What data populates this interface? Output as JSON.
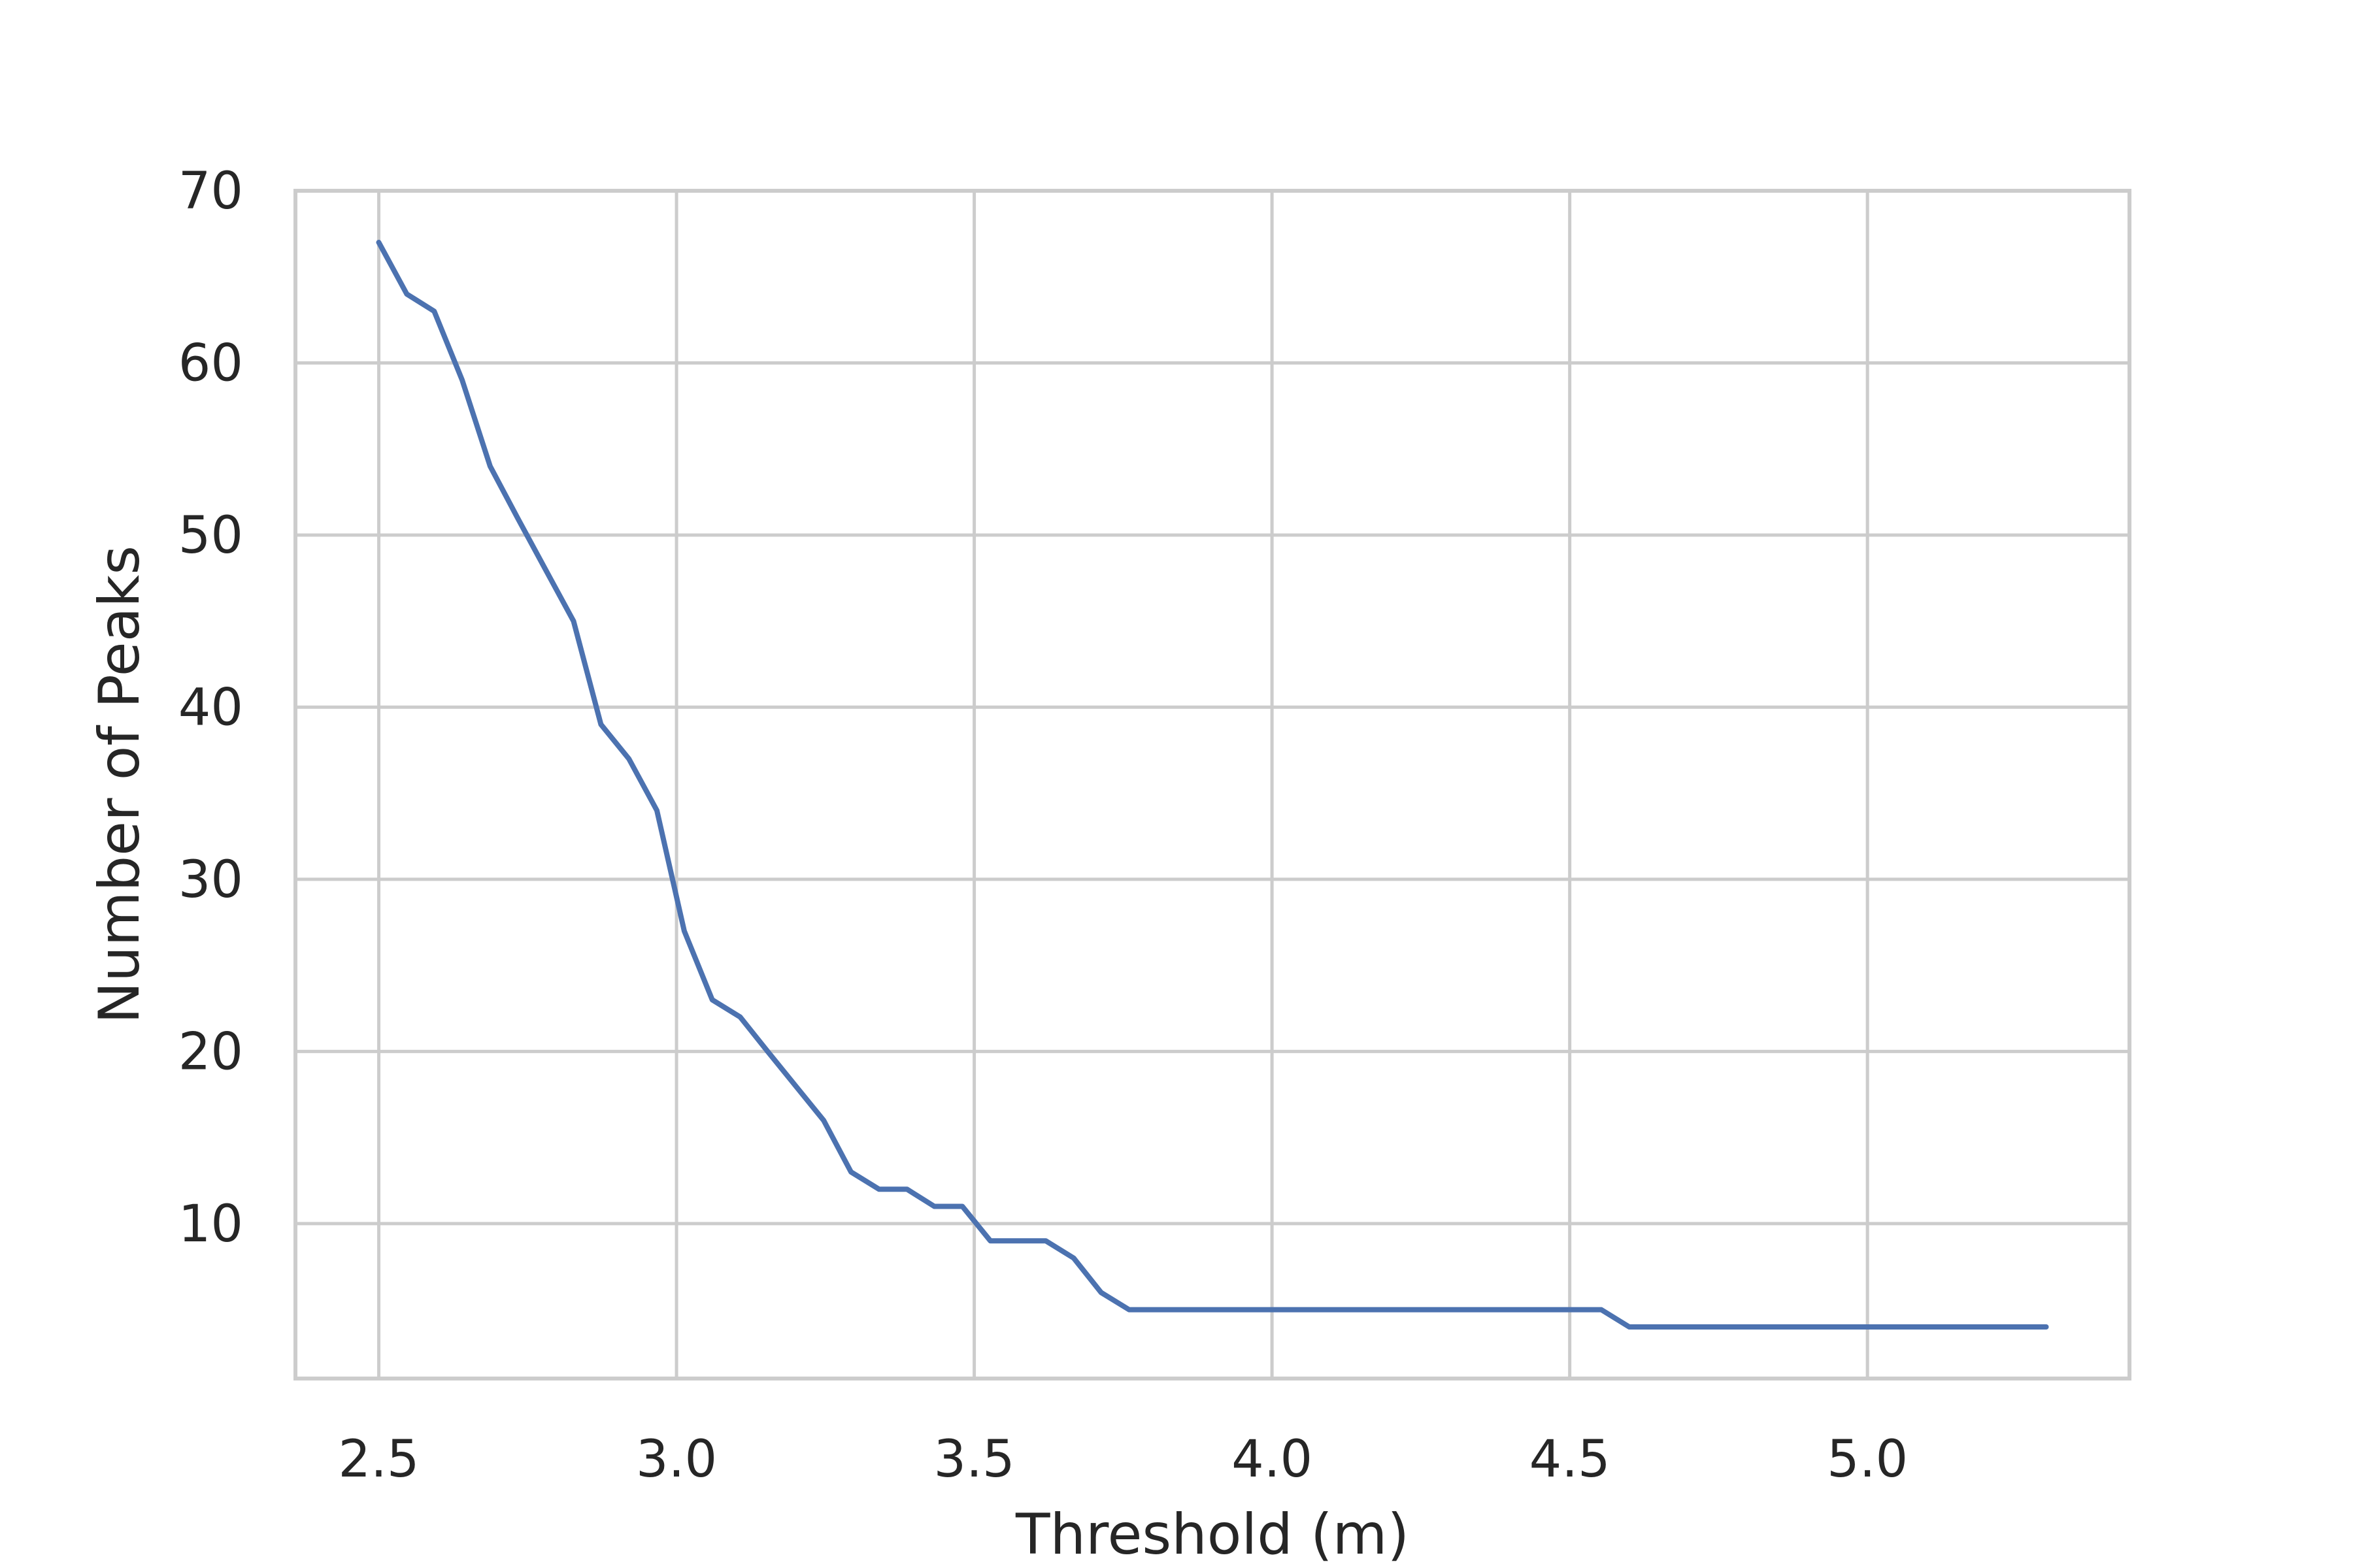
{
  "chart_data": {
    "type": "line",
    "title": "",
    "xlabel": "Threshold (m)",
    "ylabel": "Number of Peaks",
    "xlim": [
      2.36,
      5.44
    ],
    "ylim": [
      1,
      70
    ],
    "x_ticks": [
      2.5,
      3.0,
      3.5,
      4.0,
      4.5,
      5.0
    ],
    "x_tick_labels": [
      "2.5",
      "3.0",
      "3.5",
      "4.0",
      "4.5",
      "5.0"
    ],
    "y_ticks": [
      10,
      20,
      30,
      40,
      50,
      60,
      70
    ],
    "y_tick_labels": [
      "10",
      "20",
      "30",
      "40",
      "50",
      "60",
      "70"
    ],
    "grid": true,
    "legend": "none",
    "series": [
      {
        "color": "#4c72b0",
        "x": [
          2.5,
          2.547,
          2.593,
          2.64,
          2.687,
          2.733,
          2.78,
          2.827,
          2.873,
          2.92,
          2.967,
          3.013,
          3.06,
          3.107,
          3.153,
          3.2,
          3.247,
          3.293,
          3.34,
          3.387,
          3.433,
          3.48,
          3.527,
          3.573,
          3.62,
          3.667,
          3.713,
          3.76,
          3.807,
          3.853,
          3.9,
          3.947,
          3.993,
          4.04,
          4.087,
          4.133,
          4.18,
          4.227,
          4.273,
          4.32,
          4.367,
          4.413,
          4.46,
          4.507,
          4.553,
          4.6,
          4.647,
          4.693,
          4.74,
          4.787,
          4.833,
          4.88,
          4.927,
          4.973,
          5.02,
          5.067,
          5.113,
          5.16,
          5.207,
          5.253,
          5.3
        ],
        "y": [
          67,
          64,
          63,
          59,
          54,
          51,
          48,
          45,
          39,
          37,
          34,
          27,
          23,
          22,
          20,
          18,
          16,
          13,
          12,
          12,
          11,
          11,
          9,
          9,
          9,
          8,
          6,
          5,
          5,
          5,
          5,
          5,
          5,
          5,
          5,
          5,
          5,
          5,
          5,
          5,
          5,
          5,
          5,
          5,
          5,
          4,
          4,
          4,
          4,
          4,
          4,
          4,
          4,
          4,
          4,
          4,
          4,
          4,
          4,
          4,
          4
        ]
      }
    ]
  }
}
